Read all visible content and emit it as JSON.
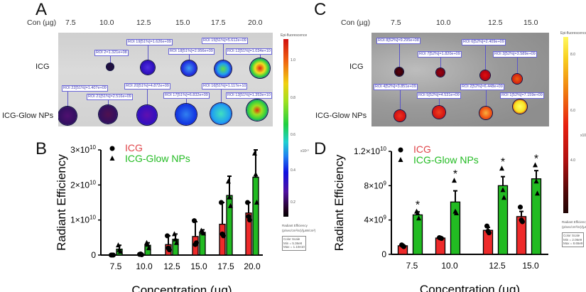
{
  "panels": {
    "A": {
      "label": "A",
      "con_label": "Con (µg)",
      "concentrations": [
        "7.5",
        "10.0",
        "12.5",
        "15.0",
        "17.5",
        "20.0"
      ],
      "rows": [
        "ICG",
        "ICG-Glow NPs"
      ],
      "roi_icg": [
        "ROI 2=1.321e+08",
        "ROI 19[51%]=1.626e+09",
        "ROI 18[51%]=2.956e+09",
        "ROI 15[51%]=5.612e+09",
        "ROI 12[51%]=1.034e+10"
      ],
      "roi_np": [
        "ROI 22[51%]=1.407e+09",
        "ROI 21[51%]=2.516e+09",
        "ROI 20[51%]=4.872e+09",
        "ROI 17[51%]=6.832e+09",
        "ROI 16[51%]=1.117e+10",
        "ROI 13[51%]=1.353e+10"
      ],
      "colorbar": {
        "title": "Epi-fluorescence",
        "ticks": [
          "1.0",
          "0.8",
          "0.6",
          "0.4",
          "0.2"
        ],
        "multiplier": "x10¹⁰",
        "unit": "Radiant Efficiency",
        "unit_sub": "(p/sec/cm²/sr)/(µW/cm²)",
        "scale_title": "Color Scale",
        "min": "Min = 5.36e8",
        "max": "Max = 1.10e10",
        "colormap": "rainbow"
      }
    },
    "C": {
      "label": "C",
      "con_label": "Con (µg)",
      "concentrations": [
        "7.5",
        "10.0",
        "12.5",
        "15.0"
      ],
      "rows": [
        "ICG",
        "ICG-Glow NPs"
      ],
      "roi_icg": [
        "ROI 8[52%]=9.295e+08",
        "ROI 7[52%]=1.820e+09",
        "ROI 6[52%]=2.409e+09",
        "ROI 3[52%]=3.589e+09"
      ],
      "roi_np": [
        "ROI 4[52%]=3.851e+09",
        "ROI 5[52%]=4.531e+09",
        "ROI 2[52%]=6.448e+09",
        "ROI 1[52%]=7.159e+09"
      ],
      "colorbar": {
        "title": "Epi-fluorescence",
        "ticks": [
          "8.0",
          "6.0",
          "4.0"
        ],
        "multiplier": "x10⁹",
        "unit": "Radiant Efficiency",
        "unit_sub": "(p/sec/cm²/sr)/(µW/cm²)",
        "scale_title": "Color Scale",
        "min": "Min = 2.06e9",
        "max": "Max = 8.65e9",
        "colormap": "hot"
      }
    }
  },
  "colors": {
    "icg": "#ee2a2a",
    "np": "#22bb22",
    "icg_legend": "#e0454a",
    "np_legend": "#22bb22"
  },
  "chart_data": [
    {
      "panel": "B",
      "type": "bar",
      "xlabel": "Concentration (µg)",
      "ylabel": "Radiant Efficiency",
      "categories": [
        "7.5",
        "10.0",
        "12.5",
        "15.0",
        "17.5",
        "20.0"
      ],
      "ylim": [
        0,
        30000000000.0
      ],
      "yticks": [
        {
          "v": 0,
          "base": "0",
          "exp": ""
        },
        {
          "v": 10000000000.0,
          "base": "1×10",
          "exp": "10"
        },
        {
          "v": 20000000000.0,
          "base": "2×10",
          "exp": "10"
        },
        {
          "v": 30000000000.0,
          "base": "3×10",
          "exp": "10"
        }
      ],
      "legend": "top-left",
      "series": [
        {
          "name": "ICG",
          "marker": "circle",
          "values": [
            100000000.0,
            200000000.0,
            3000000000.0,
            5300000000.0,
            8800000000.0,
            12000000000.0
          ],
          "error_upper": [
            100000000.0,
            300000000.0,
            5500000000.0,
            9500000000.0,
            15000000000.0,
            15000000000.0
          ],
          "points": [
            [
              0,
              0,
              0
            ],
            [
              200000000.0,
              300000000.0,
              100000000.0
            ],
            [
              5500000000.0,
              2000000000.0,
              1500000000.0
            ],
            [
              9800000000.0,
              3000000000.0,
              3500000000.0
            ],
            [
              15000000000.0,
              6000000000.0,
              5500000000.0
            ],
            [
              15000000000.0,
              11000000000.0,
              10000000000.0
            ]
          ]
        },
        {
          "name": "ICG-Glow NPs",
          "marker": "triangle",
          "values": [
            1700000000.0,
            2800000000.0,
            4500000000.0,
            6500000000.0,
            17000000000.0,
            22200000000.0
          ],
          "error_upper": [
            2800000000.0,
            3500000000.0,
            6000000000.0,
            7200000000.0,
            22500000000.0,
            30000000000.0
          ],
          "points": [
            [
              2800000000.0,
              1500000000.0,
              1000000000.0
            ],
            [
              3500000000.0,
              3000000000.0,
              2000000000.0
            ],
            [
              6000000000.0,
              4500000000.0,
              3500000000.0
            ],
            [
              7000000000.0,
              6500000000.0,
              6200000000.0
            ],
            [
              21000000000.0,
              16500000000.0,
              14000000000.0
            ],
            [
              29000000000.0,
              23000000000.0,
              15000000000.0
            ]
          ]
        }
      ],
      "annotations": []
    },
    {
      "panel": "D",
      "type": "bar",
      "xlabel": "Concentration (µg)",
      "ylabel": "Radiant Efficiency",
      "categories": [
        "7.5",
        "10.0",
        "12.5",
        "15.0"
      ],
      "ylim": [
        0,
        12000000000.0
      ],
      "yticks": [
        {
          "v": 0,
          "base": "0",
          "exp": ""
        },
        {
          "v": 4000000000.0,
          "base": "4×10",
          "exp": "9"
        },
        {
          "v": 8000000000.0,
          "base": "8×10",
          "exp": "9"
        },
        {
          "v": 12000000000.0,
          "base": "1.2×10",
          "exp": "10"
        }
      ],
      "legend": "top-left",
      "series": [
        {
          "name": "ICG",
          "marker": "circle",
          "values": [
            1000000000.0,
            1900000000.0,
            2800000000.0,
            4400000000.0
          ],
          "error_upper": [
            1100000000.0,
            1950000000.0,
            3150000000.0,
            5000000000.0
          ],
          "points": [
            [
              1100000000.0,
              1000000000.0,
              900000000.0
            ],
            [
              1950000000.0,
              1900000000.0,
              1850000000.0
            ],
            [
              3300000000.0,
              2700000000.0,
              2500000000.0
            ],
            [
              5500000000.0,
              4000000000.0,
              3800000000.0
            ]
          ]
        },
        {
          "name": "ICG-Glow NPs",
          "marker": "triangle",
          "values": [
            4600000000.0,
            6100000000.0,
            8000000000.0,
            8800000000.0
          ],
          "error_upper": [
            4950000000.0,
            7400000000.0,
            9050000000.0,
            9750000000.0
          ],
          "points": [
            [
              5000000000.0,
              4800000000.0,
              4200000000.0
            ],
            [
              8600000000.0,
              5000000000.0,
              4800000000.0
            ],
            [
              10000000000.0,
              7500000000.0,
              6600000000.0
            ],
            [
              10400000000.0,
              8500000000.0,
              7100000000.0
            ]
          ]
        }
      ],
      "annotations": [
        "*",
        "*",
        "*",
        "*"
      ]
    }
  ]
}
